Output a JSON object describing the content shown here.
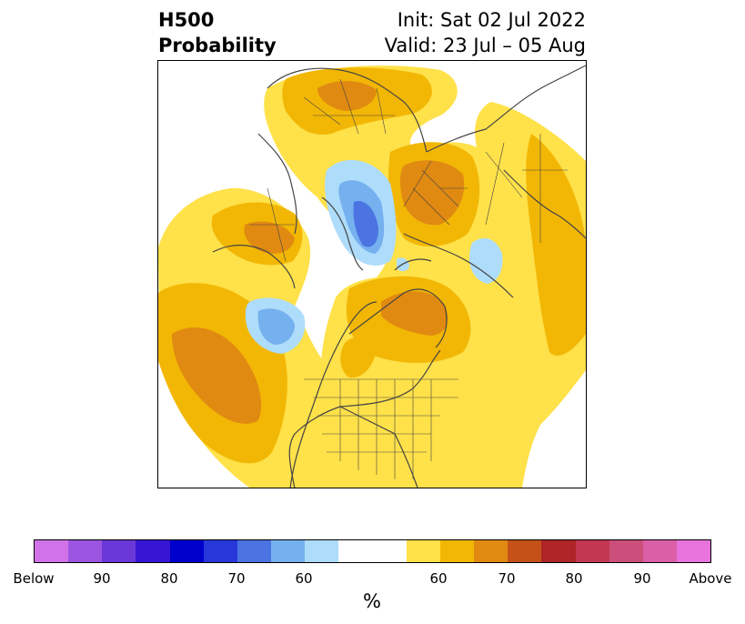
{
  "title": {
    "left_line1": "H500",
    "left_line2": "Probability",
    "right_line1": "Init: Sat 02 Jul 2022",
    "right_line2": "Valid: 23 Jul – 05 Aug"
  },
  "colorbar": {
    "label": "%",
    "colors": [
      "#d173e8",
      "#9b55e0",
      "#6a38d8",
      "#3616d4",
      "#0000cc",
      "#2737d9",
      "#4b73e2",
      "#75b0ef",
      "#aedcfb",
      "#ffffff",
      "#ffffff",
      "#ffe149",
      "#f2b705",
      "#e08a11",
      "#c65118",
      "#ae2427",
      "#c33753",
      "#cc4e7a",
      "#db5fa6",
      "#e873dc"
    ],
    "tick_labels": [
      "Below",
      "90",
      "80",
      "70",
      "60",
      "60",
      "70",
      "80",
      "90",
      "Above"
    ]
  },
  "map": {
    "colors": {
      "yellow": "#ffe149",
      "gold": "#f2b705",
      "orange": "#e08a11",
      "light_blue": "#aedcfb",
      "mid_blue": "#75b0ef",
      "blue": "#4b73e2",
      "borders": "#444444"
    }
  }
}
